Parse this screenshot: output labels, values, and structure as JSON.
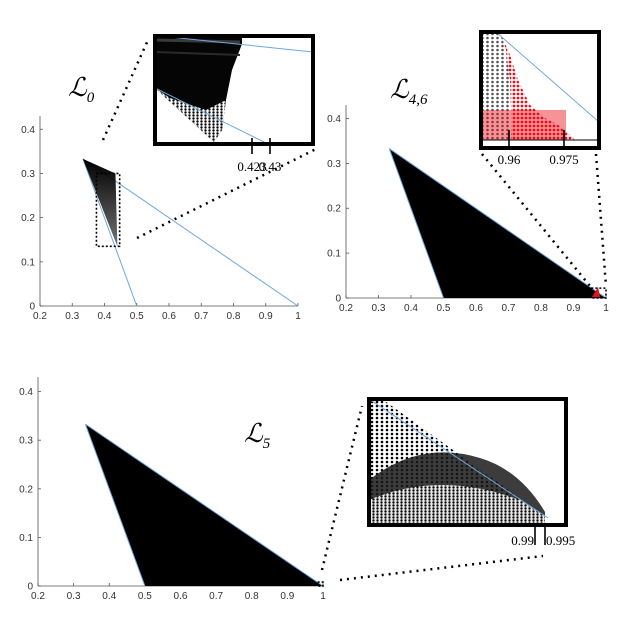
{
  "colors": {
    "region": "#000000",
    "boundary_line": "#6fa8dc",
    "highlight": "#e8101a",
    "axis": "#555555",
    "frame": "#000000"
  },
  "chart_data": [
    {
      "type": "scatter",
      "panel_label_main": "ℒ",
      "panel_label_sub": "0",
      "xlim": [
        0.2,
        1.0
      ],
      "ylim": [
        0,
        0.43
      ],
      "x_ticks": [
        "0.2",
        "0.3",
        "0.4",
        "0.5",
        "0.6",
        "0.7",
        "0.8",
        "0.9",
        "1"
      ],
      "y_ticks": [
        "0",
        "0.1",
        "0.2",
        "0.3",
        "0.4"
      ],
      "region_vertices": [
        [
          0.333,
          0.333
        ],
        [
          0.44,
          0.135
        ],
        [
          0.434,
          0.3
        ]
      ],
      "boundary_lines": [
        {
          "from": [
            0.333,
            0.333
          ],
          "to": [
            1.0,
            0.0
          ]
        },
        {
          "from": [
            0.333,
            0.333
          ],
          "to": [
            0.5,
            0.0
          ]
        }
      ],
      "zoom_box": {
        "x": [
          0.375,
          0.447
        ],
        "y": [
          0.135,
          0.3
        ]
      },
      "inset": {
        "x_ticks": [
          "0.423",
          "0.43"
        ],
        "x_tick_values": [
          0.423,
          0.43
        ]
      }
    },
    {
      "type": "scatter",
      "panel_label_main": "ℒ",
      "panel_label_sub": "4,6",
      "xlim": [
        0.2,
        1.0
      ],
      "ylim": [
        0,
        0.43
      ],
      "x_ticks": [
        "0.2",
        "0.3",
        "0.4",
        "0.5",
        "0.6",
        "0.7",
        "0.8",
        "0.9",
        "1"
      ],
      "y_ticks": [
        "0",
        "0.1",
        "0.2",
        "0.3",
        "0.4"
      ],
      "region_vertices": [
        [
          0.333,
          0.333
        ],
        [
          0.5,
          0.0
        ],
        [
          1.0,
          0.0
        ]
      ],
      "boundary_lines": [
        {
          "from": [
            0.333,
            0.333
          ],
          "to": [
            1.0,
            0.0
          ]
        },
        {
          "from": [
            0.333,
            0.333
          ],
          "to": [
            0.5,
            0.0
          ]
        }
      ],
      "zoom_box": {
        "x": [
          0.955,
          1.0
        ],
        "y": [
          0.0,
          0.022
        ]
      },
      "inset": {
        "x_ticks": [
          "0.96",
          "0.975"
        ],
        "x_tick_values": [
          0.96,
          0.975
        ]
      }
    },
    {
      "type": "scatter",
      "panel_label_main": "ℒ",
      "panel_label_sub": "5",
      "xlim": [
        0.2,
        1.0
      ],
      "ylim": [
        0,
        0.43
      ],
      "x_ticks": [
        "0.2",
        "0.3",
        "0.4",
        "0.5",
        "0.6",
        "0.7",
        "0.8",
        "0.9",
        "1"
      ],
      "y_ticks": [
        "0",
        "0.1",
        "0.2",
        "0.3",
        "0.4"
      ],
      "region_vertices": [
        [
          0.333,
          0.333
        ],
        [
          0.5,
          0.0
        ],
        [
          1.0,
          0.0
        ]
      ],
      "boundary_lines": [
        {
          "from": [
            0.333,
            0.333
          ],
          "to": [
            1.0,
            0.0
          ]
        },
        {
          "from": [
            0.333,
            0.333
          ],
          "to": [
            0.5,
            0.0
          ]
        }
      ],
      "zoom_box": {
        "x": [
          0.985,
          1.0
        ],
        "y": [
          0.0,
          0.008
        ]
      },
      "inset": {
        "x_ticks": [
          "0.99",
          "0.995"
        ],
        "x_tick_values": [
          0.99,
          0.995
        ]
      }
    }
  ]
}
